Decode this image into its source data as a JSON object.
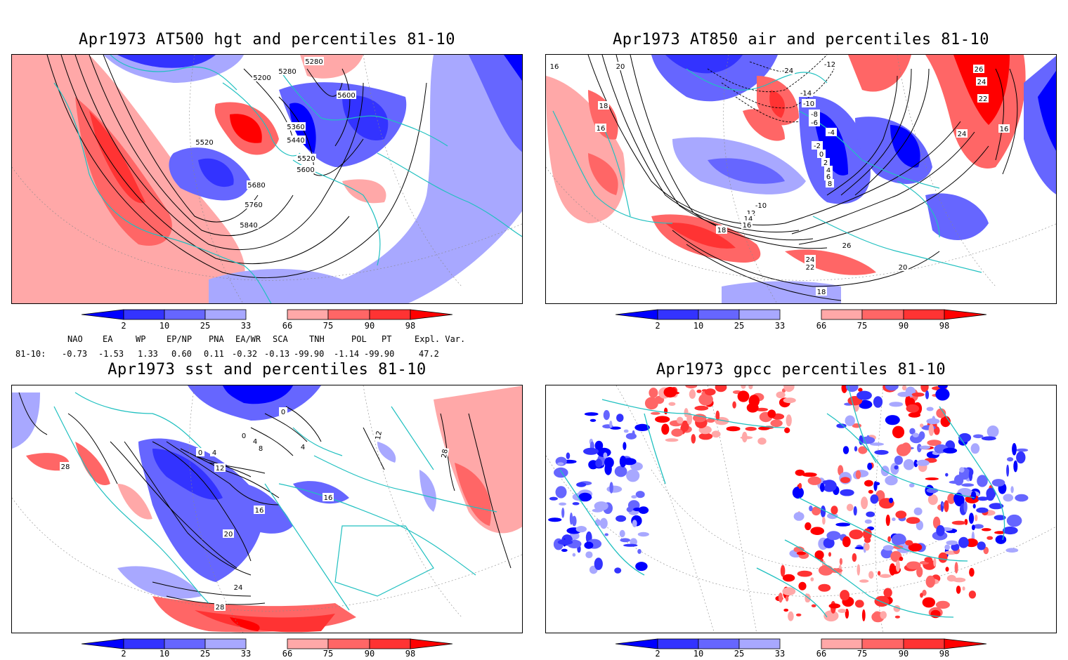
{
  "panels": {
    "p1": {
      "title": "Apr1973 AT500 hgt and percentiles 81-10",
      "contour_labels": [
        "5280",
        "5280",
        "5200",
        "5600",
        "5360",
        "5440",
        "5520",
        "5520",
        "5600",
        "5680",
        "5760",
        "5840"
      ]
    },
    "p2": {
      "title": "Apr1973 AT850 air and percentiles 81-10",
      "contour_labels": [
        "16",
        "20",
        "-24",
        "-12",
        "26",
        "24",
        "22",
        "-14",
        "-10",
        "-8",
        "-6",
        "-4",
        "-2",
        "0",
        "2",
        "4",
        "6",
        "8",
        "18",
        "16",
        "24",
        "-10",
        "12",
        "14",
        "16",
        "18",
        "26",
        "24",
        "22",
        "20",
        "18",
        "16"
      ]
    },
    "p3": {
      "title": "Apr1973 sst and percentiles 81-10",
      "contour_labels": [
        "0",
        "0",
        "4",
        "8",
        "4",
        "0",
        "4",
        "12",
        "16",
        "16",
        "20",
        "24",
        "28",
        "28",
        "12",
        "28"
      ]
    },
    "p4": {
      "title": "Apr1973 gpcc percentiles 81-10"
    }
  },
  "colorbar": {
    "labels": [
      "2",
      "10",
      "25",
      "33",
      "66",
      "75",
      "90",
      "98"
    ],
    "colors": {
      "below2": "#0000ff",
      "c2_10": "#3333ff",
      "c10_25": "#6666ff",
      "c25_33": "#a8a8ff",
      "c66_75": "#ffa8a8",
      "c75_90": "#ff6666",
      "c90_98": "#ff3333",
      "above98": "#ff0000"
    }
  },
  "indices": {
    "headers": [
      "NAO",
      "EA",
      "WP",
      "EP/NP",
      "PNA",
      "EA/WR",
      "SCA",
      "TNH",
      "POL",
      "PT",
      "Expl. Var."
    ],
    "row_label": "81-10:",
    "values": [
      "-0.73",
      "-1.53",
      "1.33",
      "0.60",
      "0.11",
      "-0.32",
      "-0.13",
      "-99.90",
      "-1.14",
      "-99.90",
      "47.2"
    ]
  },
  "colors": {
    "coast": "#20c0c0",
    "contour": "#000000",
    "frame": "#000000"
  }
}
